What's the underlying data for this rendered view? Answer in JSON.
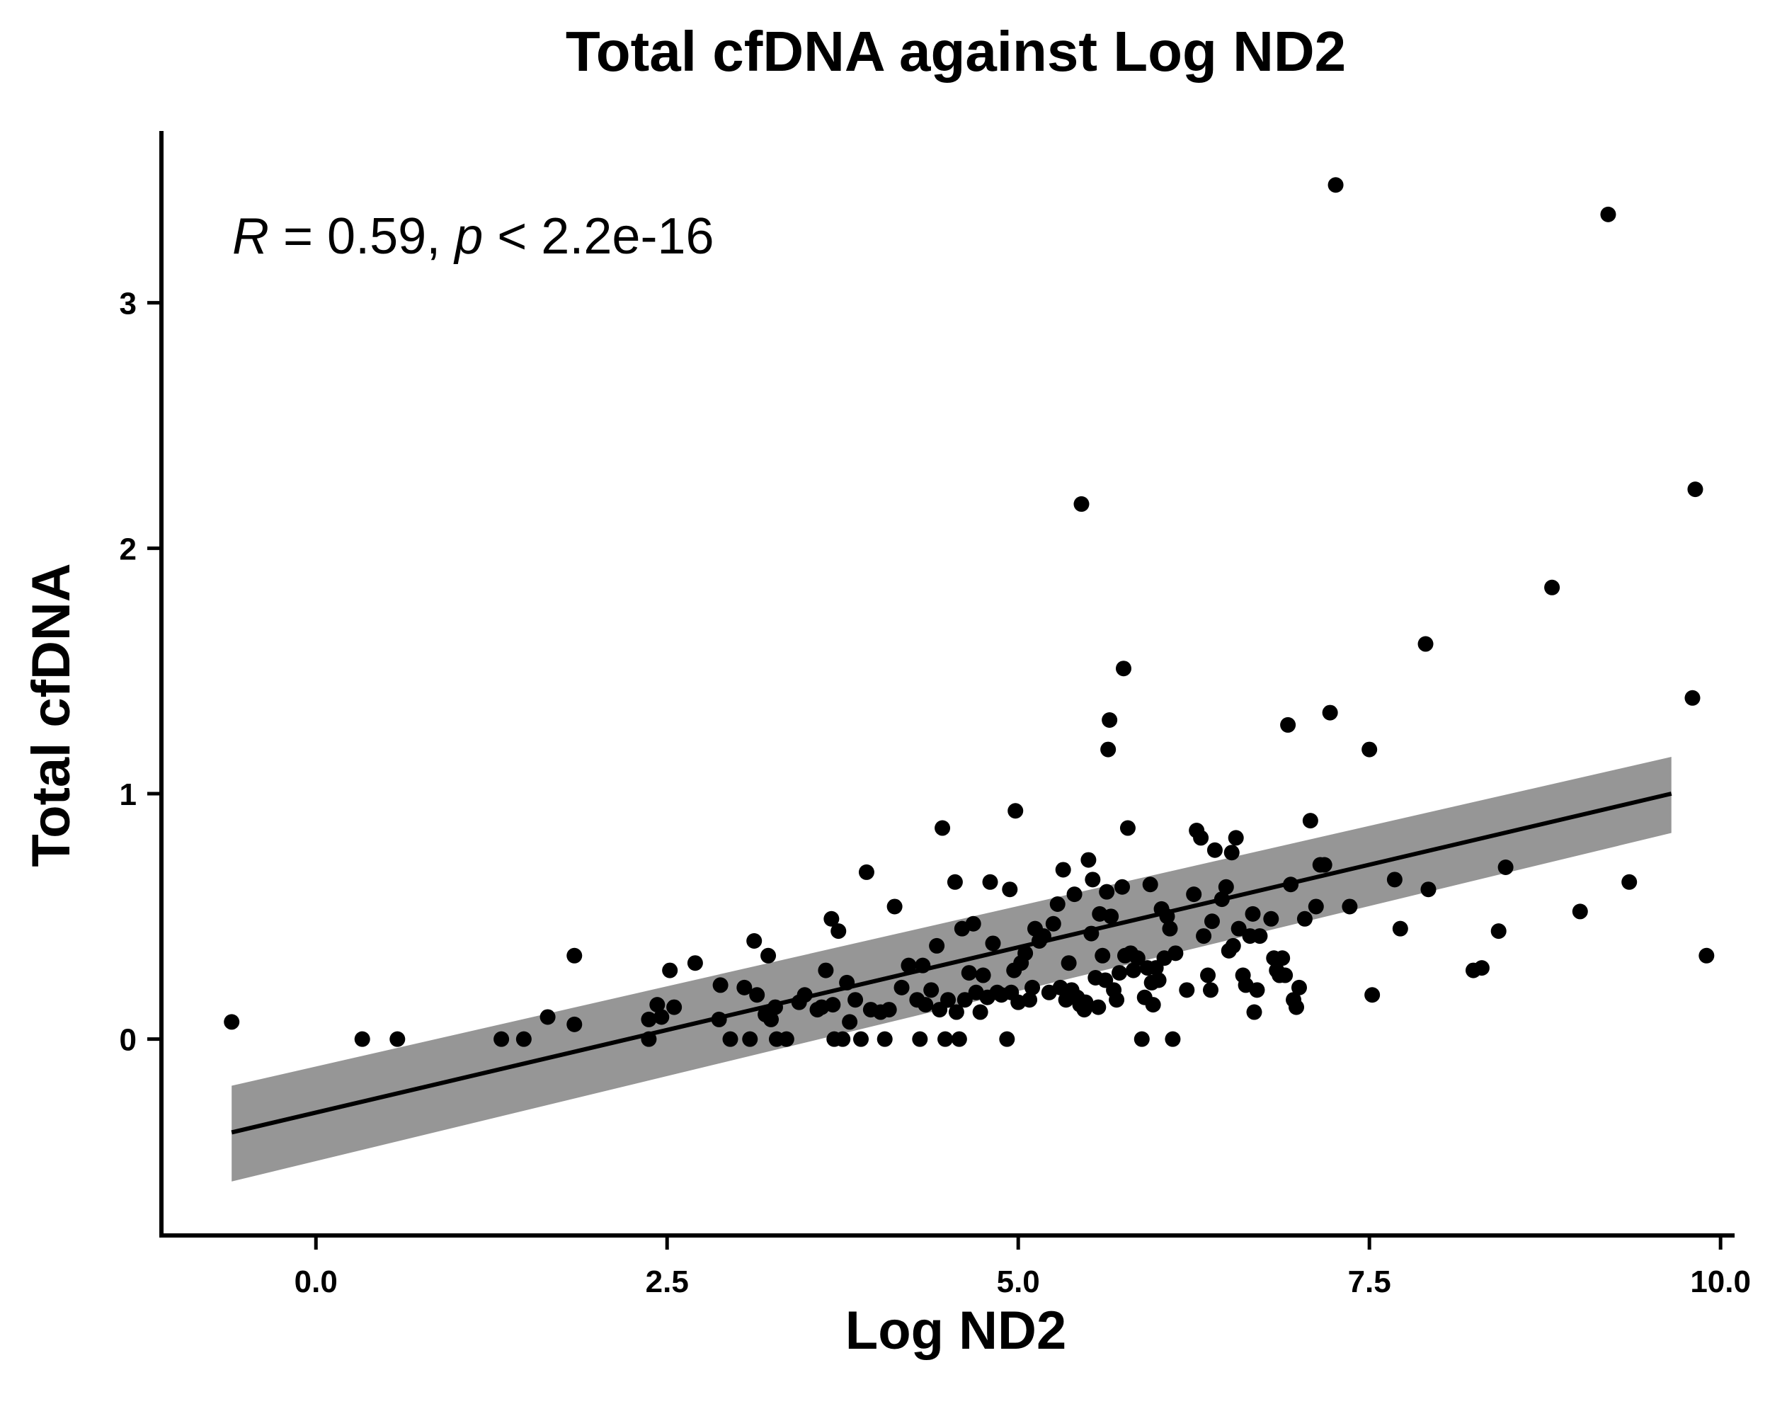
{
  "chart_data": {
    "type": "scatter",
    "title": "Total cfDNA against Log ND2",
    "xlabel": "Log ND2",
    "ylabel": "Total cfDNA",
    "xlim": [
      -1.1,
      10.1
    ],
    "ylim": [
      -0.8,
      3.7
    ],
    "xticks": [
      0.0,
      2.5,
      5.0,
      7.5,
      10.0
    ],
    "xtick_labels": [
      "0.0",
      "2.5",
      "5.0",
      "7.5",
      "10.0"
    ],
    "yticks": [
      0,
      1,
      2,
      3
    ],
    "ytick_labels": [
      "0",
      "1",
      "2",
      "3"
    ],
    "grid": false,
    "annotation": {
      "r_symbol": "R",
      "r_value": " = 0.59, ",
      "p_symbol": "p",
      "p_value": " < 2.2e-16"
    },
    "point_color": "#000000",
    "line_color": "#000000",
    "band_color": "#969696",
    "regression": {
      "x": [
        -0.6,
        9.65
      ],
      "y": [
        -0.38,
        1.0
      ],
      "ci_lower": [
        -0.58,
        0.84
      ],
      "ci_upper": [
        -0.19,
        1.15
      ]
    },
    "points": [
      [
        -0.6,
        0.07
      ],
      [
        0.33,
        0.0
      ],
      [
        0.58,
        0.0
      ],
      [
        1.32,
        0.0
      ],
      [
        1.48,
        0.0
      ],
      [
        1.65,
        0.09
      ],
      [
        1.84,
        0.06
      ],
      [
        1.84,
        0.34
      ],
      [
        2.37,
        0.08
      ],
      [
        2.37,
        0.0
      ],
      [
        2.43,
        0.14
      ],
      [
        2.46,
        0.09
      ],
      [
        2.52,
        0.28
      ],
      [
        2.55,
        0.13
      ],
      [
        2.7,
        0.31
      ],
      [
        2.87,
        0.08
      ],
      [
        2.88,
        0.22
      ],
      [
        2.95,
        0.0
      ],
      [
        3.05,
        0.21
      ],
      [
        3.09,
        0.0
      ],
      [
        3.12,
        0.4
      ],
      [
        3.14,
        0.18
      ],
      [
        3.2,
        0.1
      ],
      [
        3.22,
        0.34
      ],
      [
        3.24,
        0.08
      ],
      [
        3.27,
        0.13
      ],
      [
        3.28,
        0.0
      ],
      [
        3.35,
        0.0
      ],
      [
        3.44,
        0.15
      ],
      [
        3.48,
        0.18
      ],
      [
        3.57,
        0.12
      ],
      [
        3.6,
        0.13
      ],
      [
        3.63,
        0.28
      ],
      [
        3.67,
        0.49
      ],
      [
        3.68,
        0.14
      ],
      [
        3.69,
        0.0
      ],
      [
        3.72,
        0.44
      ],
      [
        3.75,
        0.0
      ],
      [
        3.78,
        0.23
      ],
      [
        3.8,
        0.07
      ],
      [
        3.84,
        0.16
      ],
      [
        3.88,
        0.0
      ],
      [
        3.92,
        0.68
      ],
      [
        3.95,
        0.12
      ],
      [
        4.02,
        0.11
      ],
      [
        4.05,
        0.0
      ],
      [
        4.08,
        0.12
      ],
      [
        4.12,
        0.54
      ],
      [
        4.17,
        0.21
      ],
      [
        4.22,
        0.3
      ],
      [
        4.28,
        0.16
      ],
      [
        4.3,
        0.0
      ],
      [
        4.32,
        0.3
      ],
      [
        4.34,
        0.14
      ],
      [
        4.38,
        0.2
      ],
      [
        4.42,
        0.38
      ],
      [
        4.44,
        0.12
      ],
      [
        4.46,
        0.86
      ],
      [
        4.48,
        0.0
      ],
      [
        4.5,
        0.16
      ],
      [
        4.55,
        0.64
      ],
      [
        4.56,
        0.11
      ],
      [
        4.58,
        0.0
      ],
      [
        4.6,
        0.45
      ],
      [
        4.62,
        0.16
      ],
      [
        4.65,
        0.27
      ],
      [
        4.68,
        0.47
      ],
      [
        4.7,
        0.19
      ],
      [
        4.73,
        0.11
      ],
      [
        4.75,
        0.26
      ],
      [
        4.78,
        0.17
      ],
      [
        4.8,
        0.64
      ],
      [
        4.82,
        0.39
      ],
      [
        4.85,
        0.19
      ],
      [
        4.88,
        0.18
      ],
      [
        4.92,
        0.0
      ],
      [
        4.94,
        0.61
      ],
      [
        4.95,
        0.19
      ],
      [
        4.97,
        0.28
      ],
      [
        4.98,
        0.93
      ],
      [
        5.0,
        0.15
      ],
      [
        5.02,
        0.31
      ],
      [
        5.05,
        0.35
      ],
      [
        5.08,
        0.16
      ],
      [
        5.1,
        0.21
      ],
      [
        5.12,
        0.45
      ],
      [
        5.15,
        0.4
      ],
      [
        5.18,
        0.42
      ],
      [
        5.22,
        0.19
      ],
      [
        5.25,
        0.47
      ],
      [
        5.28,
        0.55
      ],
      [
        5.3,
        0.21
      ],
      [
        5.32,
        0.69
      ],
      [
        5.34,
        0.16
      ],
      [
        5.36,
        0.31
      ],
      [
        5.38,
        0.2
      ],
      [
        5.4,
        0.59
      ],
      [
        5.42,
        0.17
      ],
      [
        5.44,
        0.14
      ],
      [
        5.45,
        2.18
      ],
      [
        5.47,
        0.12
      ],
      [
        5.48,
        0.15
      ],
      [
        5.5,
        0.73
      ],
      [
        5.52,
        0.43
      ],
      [
        5.53,
        0.65
      ],
      [
        5.55,
        0.25
      ],
      [
        5.57,
        0.13
      ],
      [
        5.58,
        0.51
      ],
      [
        5.6,
        0.34
      ],
      [
        5.62,
        0.24
      ],
      [
        5.63,
        0.6
      ],
      [
        5.64,
        1.18
      ],
      [
        5.65,
        1.3
      ],
      [
        5.66,
        0.5
      ],
      [
        5.68,
        0.2
      ],
      [
        5.7,
        0.16
      ],
      [
        5.72,
        0.27
      ],
      [
        5.74,
        0.62
      ],
      [
        5.75,
        1.51
      ],
      [
        5.76,
        0.34
      ],
      [
        5.78,
        0.86
      ],
      [
        5.8,
        0.35
      ],
      [
        5.82,
        0.28
      ],
      [
        5.85,
        0.33
      ],
      [
        5.88,
        0.0
      ],
      [
        5.9,
        0.17
      ],
      [
        5.92,
        0.29
      ],
      [
        5.94,
        0.63
      ],
      [
        5.95,
        0.23
      ],
      [
        5.96,
        0.14
      ],
      [
        5.98,
        0.29
      ],
      [
        6.0,
        0.24
      ],
      [
        6.02,
        0.53
      ],
      [
        6.04,
        0.33
      ],
      [
        6.06,
        0.5
      ],
      [
        6.08,
        0.45
      ],
      [
        6.1,
        0.0
      ],
      [
        6.12,
        0.35
      ],
      [
        6.2,
        0.2
      ],
      [
        6.25,
        0.59
      ],
      [
        6.27,
        0.85
      ],
      [
        6.3,
        0.82
      ],
      [
        6.32,
        0.42
      ],
      [
        6.35,
        0.26
      ],
      [
        6.37,
        0.2
      ],
      [
        6.38,
        0.48
      ],
      [
        6.4,
        0.77
      ],
      [
        6.45,
        0.57
      ],
      [
        6.48,
        0.62
      ],
      [
        6.5,
        0.36
      ],
      [
        6.52,
        0.76
      ],
      [
        6.53,
        0.38
      ],
      [
        6.55,
        0.82
      ],
      [
        6.57,
        0.45
      ],
      [
        6.6,
        0.26
      ],
      [
        6.62,
        0.22
      ],
      [
        6.65,
        0.42
      ],
      [
        6.67,
        0.51
      ],
      [
        6.68,
        0.11
      ],
      [
        6.7,
        0.2
      ],
      [
        6.72,
        0.42
      ],
      [
        6.8,
        0.49
      ],
      [
        6.82,
        0.33
      ],
      [
        6.84,
        0.28
      ],
      [
        6.86,
        0.26
      ],
      [
        6.88,
        0.33
      ],
      [
        6.9,
        0.26
      ],
      [
        6.92,
        1.28
      ],
      [
        6.94,
        0.63
      ],
      [
        6.96,
        0.16
      ],
      [
        6.98,
        0.13
      ],
      [
        7.0,
        0.21
      ],
      [
        7.04,
        0.49
      ],
      [
        7.08,
        0.89
      ],
      [
        7.12,
        0.54
      ],
      [
        7.15,
        0.71
      ],
      [
        7.18,
        0.71
      ],
      [
        7.22,
        1.33
      ],
      [
        7.26,
        3.48
      ],
      [
        7.36,
        0.54
      ],
      [
        7.5,
        1.18
      ],
      [
        7.52,
        0.18
      ],
      [
        7.68,
        0.65
      ],
      [
        7.72,
        0.45
      ],
      [
        7.9,
        1.61
      ],
      [
        7.92,
        0.61
      ],
      [
        8.24,
        0.28
      ],
      [
        8.3,
        0.29
      ],
      [
        8.42,
        0.44
      ],
      [
        8.47,
        0.7
      ],
      [
        8.8,
        1.84
      ],
      [
        9.0,
        0.52
      ],
      [
        9.2,
        3.36
      ],
      [
        9.35,
        0.64
      ],
      [
        9.8,
        1.39
      ],
      [
        9.82,
        2.24
      ],
      [
        9.9,
        0.34
      ]
    ]
  }
}
